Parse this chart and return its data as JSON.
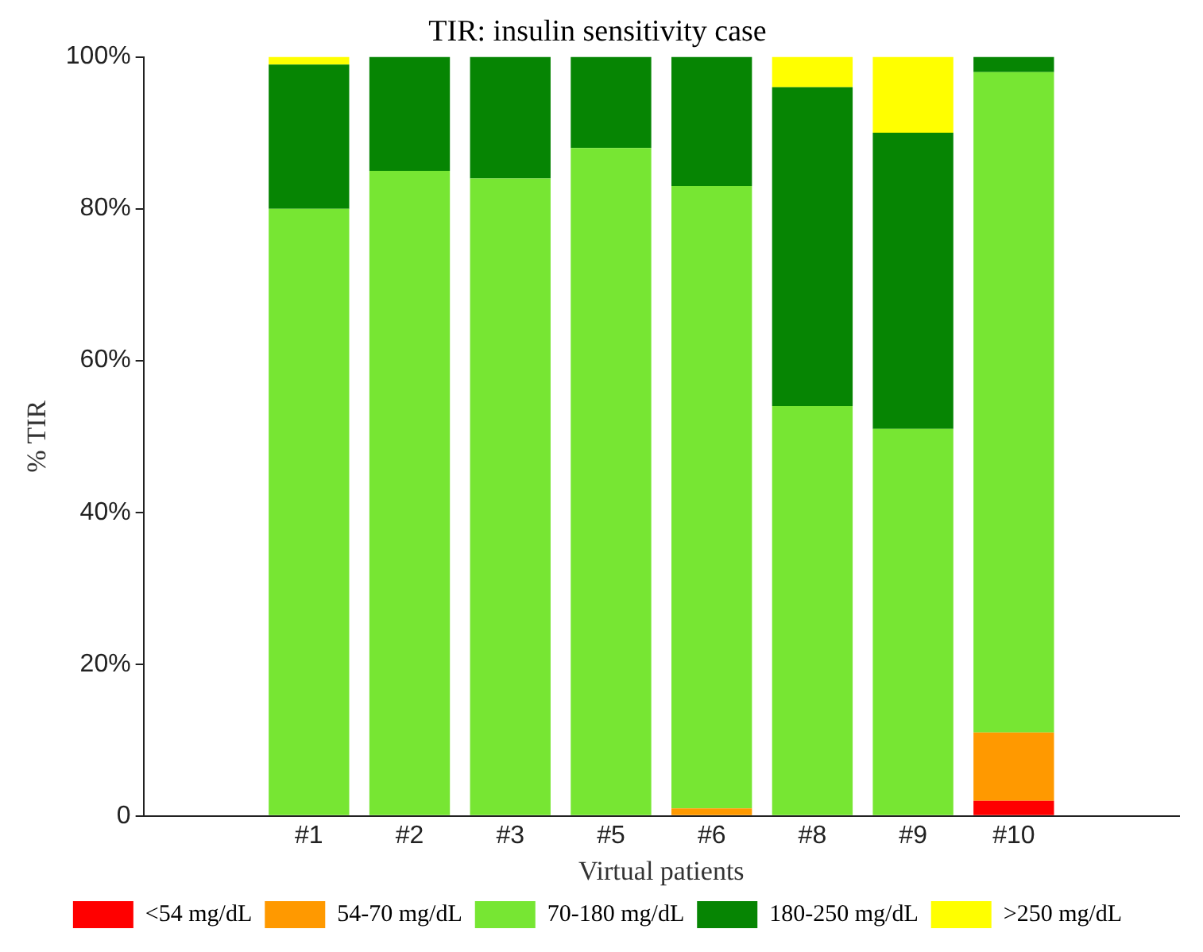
{
  "chart_data": {
    "type": "bar",
    "stacked": true,
    "title": "TIR: insulin sensitivity case",
    "xlabel": "Virtual patients",
    "ylabel": "% TIR",
    "categories": [
      "#1",
      "#2",
      "#3",
      "#5",
      "#6",
      "#8",
      "#9",
      "#10"
    ],
    "series": [
      {
        "name": "<54 mg/dL",
        "color": "#ff0000",
        "values": [
          0,
          0,
          0,
          0,
          0,
          0,
          0,
          2
        ]
      },
      {
        "name": "54-70 mg/dL",
        "color": "#ff9900",
        "values": [
          0,
          0,
          0,
          0,
          1,
          0,
          0,
          9
        ]
      },
      {
        "name": "70-180 mg/dL",
        "color": "#77e633",
        "values": [
          80,
          85,
          84,
          88,
          82,
          54,
          51,
          87
        ]
      },
      {
        "name": "180-250 mg/dL",
        "color": "#068503",
        "values": [
          19,
          15,
          16,
          12,
          17,
          42,
          39,
          2
        ]
      },
      {
        "name": ">250 mg/dL",
        "color": "#ffff00",
        "values": [
          1,
          0,
          0,
          0,
          0,
          4,
          10,
          0
        ]
      }
    ],
    "ylim": [
      0,
      100
    ],
    "yticks": [
      {
        "value": 0,
        "label": "0"
      },
      {
        "value": 20,
        "label": "20%"
      },
      {
        "value": 40,
        "label": "40%"
      },
      {
        "value": 60,
        "label": "60%"
      },
      {
        "value": 80,
        "label": "80%"
      },
      {
        "value": 100,
        "label": "100%"
      }
    ],
    "grid": false,
    "legend": "bottom"
  }
}
